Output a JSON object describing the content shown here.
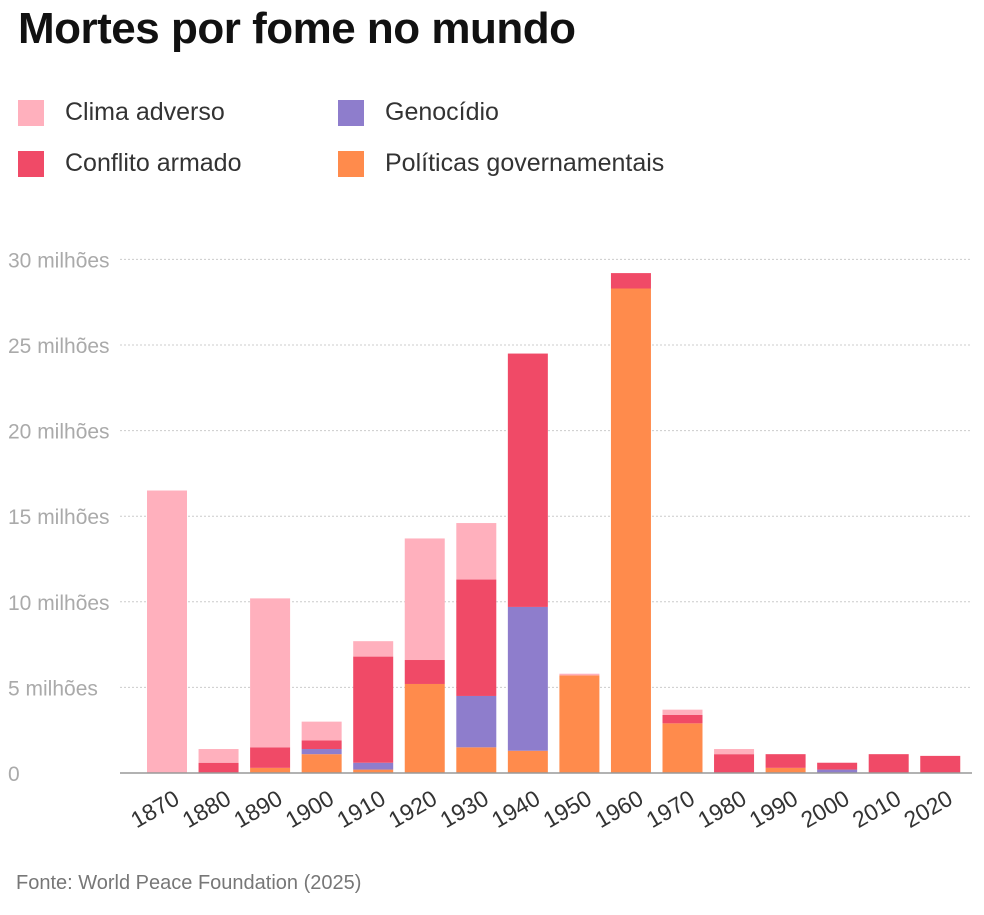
{
  "title": "Mortes por fome no mundo",
  "source": "Fonte: World Peace Foundation (2025)",
  "colors": {
    "clima": "#ffb0bd",
    "conflito": "#f04a67",
    "genocidio": "#8e7dcc",
    "politicas": "#ff8b4c",
    "grid": "#cccccc",
    "axis": "#999999",
    "tick_text": "#aaaaaa"
  },
  "chart_data": {
    "type": "bar",
    "stacked": true,
    "title": "Mortes por fome no mundo",
    "xlabel": "",
    "ylabel": "",
    "ylim": [
      0,
      30
    ],
    "yticks": [
      {
        "value": 0,
        "label": "0"
      },
      {
        "value": 5,
        "label": "5 milhões"
      },
      {
        "value": 10,
        "label": "10 milhões"
      },
      {
        "value": 15,
        "label": "15 milhões"
      },
      {
        "value": 20,
        "label": "20 milhões"
      },
      {
        "value": 25,
        "label": "25 milhões"
      },
      {
        "value": 30,
        "label": "30 milhões"
      }
    ],
    "categories": [
      "1870",
      "1880",
      "1890",
      "1900",
      "1910",
      "1920",
      "1930",
      "1940",
      "1950",
      "1960",
      "1970",
      "1980",
      "1990",
      "2000",
      "2010",
      "2020"
    ],
    "series": [
      {
        "key": "politicas",
        "name": "Políticas governamentais",
        "color": "#ff8b4c",
        "values": [
          0,
          0,
          0.3,
          1.1,
          0.2,
          5.2,
          1.5,
          1.3,
          5.7,
          28.3,
          2.9,
          0,
          0.3,
          0,
          0,
          0
        ]
      },
      {
        "key": "genocidio",
        "name": "Genocídio",
        "color": "#8e7dcc",
        "values": [
          0,
          0,
          0,
          0.3,
          0.4,
          0,
          3.0,
          8.4,
          0,
          0,
          0,
          0,
          0,
          0.2,
          0,
          0
        ]
      },
      {
        "key": "conflito",
        "name": "Conflito armado",
        "color": "#f04a67",
        "values": [
          0,
          0.6,
          1.2,
          0.5,
          6.2,
          1.4,
          6.8,
          14.8,
          0,
          0.9,
          0.5,
          1.1,
          0.8,
          0.4,
          1.1,
          1.0
        ]
      },
      {
        "key": "clima",
        "name": "Clima adverso",
        "color": "#ffb0bd",
        "values": [
          16.5,
          0.8,
          8.7,
          1.1,
          0.9,
          7.1,
          3.3,
          0,
          0.1,
          0,
          0.3,
          0.3,
          0,
          0,
          0,
          0
        ]
      }
    ],
    "legend": [
      {
        "name": "Clima adverso",
        "key": "clima"
      },
      {
        "name": "Genocídio",
        "key": "genocidio"
      },
      {
        "name": "Conflito armado",
        "key": "conflito"
      },
      {
        "name": "Políticas governamentais",
        "key": "politicas"
      }
    ],
    "legend_position": "top-left",
    "grid": true
  }
}
